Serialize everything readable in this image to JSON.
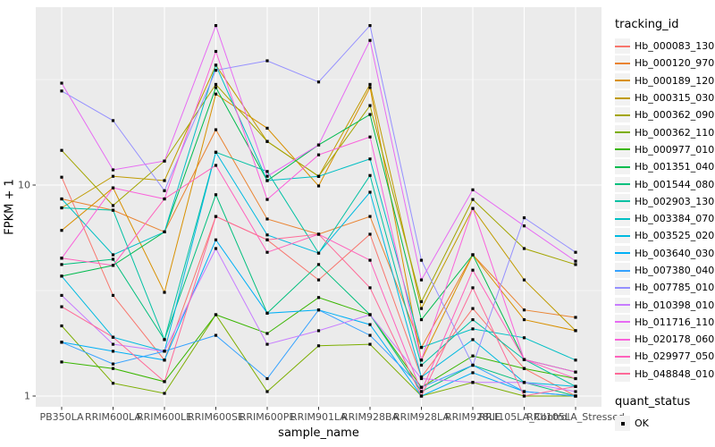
{
  "axes": {
    "x_label": "sample_name",
    "y_label": "FPKM + 1"
  },
  "legend": {
    "tracking_title": "tracking_id",
    "quant_title": "quant_status",
    "ok_label": "OK"
  },
  "colors": {
    "panel_background": "#EBEBEB",
    "gridline": "#FFFFFF",
    "tick_text": "#4D4D4D",
    "point": "#000000",
    "legend_key_background": "#F2F2F2"
  },
  "chart_data": {
    "type": "line",
    "title": "",
    "xlabel": "sample_name",
    "ylabel": "FPKM + 1",
    "y_scale": "log10",
    "ylim": [
      0.89,
      69.7
    ],
    "y_tick_values": [
      1,
      10
    ],
    "y_tick_labels": [
      "1",
      "10"
    ],
    "y_minor_gridlines": [
      3.1623,
      31.623
    ],
    "grid": true,
    "legend_position": "right",
    "point_shape": "filled-black-square",
    "quant_status": "OK",
    "categories": [
      "PB350LA",
      "RRIM600LA",
      "RRIM600LE",
      "RRIM600SE",
      "RRIM600PE",
      "RRIM901LA",
      "RRIM928BA",
      "RRIM928LA",
      "RRIM928LE",
      "RRII105LA_Control",
      "RRII105LA_Stressed"
    ],
    "series": [
      {
        "name": "Hb_000083_130",
        "color": "#F8766D",
        "values": [
          10.9,
          3.0,
          1.48,
          7.1,
          5.5,
          3.55,
          5.85,
          1.23,
          2.6,
          1.35,
          1.0
        ]
      },
      {
        "name": "Hb_000120_970",
        "color": "#EA8331",
        "values": [
          8.6,
          7.6,
          6.0,
          18.3,
          6.9,
          5.85,
          7.1,
          1.7,
          4.67,
          2.56,
          2.36
        ]
      },
      {
        "name": "Hb_000189_120",
        "color": "#D89000",
        "values": [
          6.1,
          9.7,
          3.1,
          27.0,
          18.6,
          9.9,
          29.0,
          1.48,
          4.67,
          2.3,
          2.04
        ]
      },
      {
        "name": "Hb_000315_030",
        "color": "#C09B00",
        "values": [
          7.8,
          11.0,
          10.5,
          37.0,
          16.1,
          11.0,
          30.0,
          2.6,
          7.75,
          3.55,
          2.04
        ]
      },
      {
        "name": "Hb_000362_090",
        "color": "#A3A500",
        "values": [
          14.6,
          8.0,
          13.0,
          30.0,
          16.1,
          11.0,
          23.8,
          2.8,
          8.55,
          5.0,
          4.2
        ]
      },
      {
        "name": "Hb_000362_110",
        "color": "#7CAE00",
        "values": [
          2.15,
          1.15,
          1.03,
          2.43,
          1.05,
          1.73,
          1.76,
          1.0,
          1.16,
          1.0,
          1.0
        ]
      },
      {
        "name": "Hb_000977_010",
        "color": "#39B600",
        "values": [
          1.45,
          1.35,
          1.17,
          2.43,
          1.98,
          2.93,
          2.43,
          1.1,
          1.55,
          1.35,
          1.21
        ]
      },
      {
        "name": "Hb_001351_040",
        "color": "#00BB4E",
        "values": [
          3.7,
          4.16,
          6.0,
          29.0,
          10.5,
          15.5,
          21.6,
          2.3,
          4.67,
          1.49,
          1.3
        ]
      },
      {
        "name": "Hb_001544_080",
        "color": "#00BF7D",
        "values": [
          4.2,
          4.45,
          1.85,
          9.0,
          2.47,
          4.2,
          2.43,
          1.05,
          1.4,
          1.16,
          1.0
        ]
      },
      {
        "name": "Hb_002903_130",
        "color": "#00C1A3",
        "values": [
          7.8,
          7.6,
          1.85,
          14.3,
          11.6,
          4.76,
          11.1,
          1.4,
          2.3,
          1.49,
          1.11
        ]
      },
      {
        "name": "Hb_003384_070",
        "color": "#00BFC4",
        "values": [
          8.6,
          4.67,
          6.0,
          37.0,
          10.5,
          11.0,
          13.3,
          1.7,
          2.08,
          1.89,
          1.48
        ]
      },
      {
        "name": "Hb_003525_020",
        "color": "#00BAE0",
        "values": [
          3.7,
          1.9,
          1.63,
          14.3,
          5.8,
          4.76,
          9.25,
          1.23,
          1.85,
          1.16,
          1.11
        ]
      },
      {
        "name": "Hb_003640_030",
        "color": "#00B0F6",
        "values": [
          1.8,
          1.63,
          1.48,
          5.5,
          2.47,
          2.56,
          2.18,
          1.0,
          1.29,
          1.05,
          1.0
        ]
      },
      {
        "name": "Hb_007380_040",
        "color": "#35A2FF",
        "values": [
          1.8,
          1.42,
          1.63,
          1.94,
          1.21,
          2.56,
          1.94,
          1.1,
          1.4,
          1.05,
          1.0
        ]
      },
      {
        "name": "Hb_007785_010",
        "color": "#9590FF",
        "values": [
          27.9,
          20.2,
          9.4,
          35.0,
          38.8,
          30.8,
          57.0,
          4.4,
          1.4,
          7.0,
          4.8
        ]
      },
      {
        "name": "Hb_010398_010",
        "color": "#C77CFF",
        "values": [
          3.0,
          1.76,
          1.63,
          5.0,
          1.76,
          2.04,
          2.43,
          1.21,
          1.16,
          1.16,
          1.05
        ]
      },
      {
        "name": "Hb_011716_110",
        "color": "#E76BF3",
        "values": [
          30.4,
          11.8,
          13.0,
          57.0,
          11.0,
          15.5,
          48.5,
          3.55,
          9.5,
          6.4,
          4.36
        ]
      },
      {
        "name": "Hb_020178_060",
        "color": "#FA62DB",
        "values": [
          4.5,
          9.7,
          8.6,
          43.0,
          8.55,
          13.9,
          16.9,
          1.48,
          7.75,
          1.49,
          1.3
        ]
      },
      {
        "name": "Hb_029977_050",
        "color": "#FF62BC",
        "values": [
          4.5,
          4.16,
          8.6,
          12.4,
          4.8,
          5.85,
          4.4,
          1.05,
          3.95,
          1.49,
          1.21
        ]
      },
      {
        "name": "Hb_048848_010",
        "color": "#FF6A98",
        "values": [
          2.65,
          1.9,
          1.17,
          7.1,
          5.5,
          5.85,
          3.26,
          1.0,
          3.26,
          1.0,
          1.11
        ]
      }
    ]
  }
}
